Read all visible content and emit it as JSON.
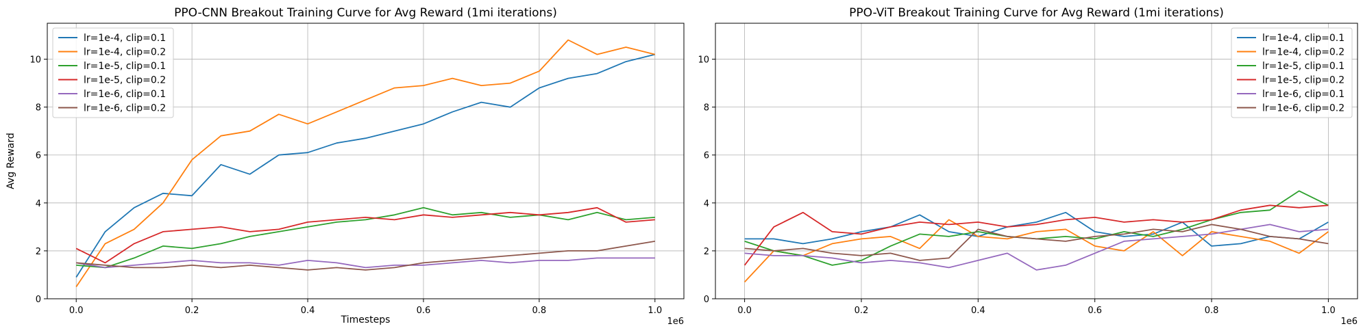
{
  "chart_data": [
    {
      "type": "line",
      "title": "PPO-CNN Breakout Training Curve for Avg Reward (1mi iterations)",
      "xlabel": "Timesteps",
      "ylabel": "Avg Reward",
      "x_offset_label": "1e6",
      "xlim": [
        -0.05,
        1.05
      ],
      "ylim": [
        0,
        11.5
      ],
      "xticks": [
        0.0,
        0.2,
        0.4,
        0.6,
        0.8,
        1.0
      ],
      "xtick_labels": [
        "0.0",
        "0.2",
        "0.4",
        "0.6",
        "0.8",
        "1.0"
      ],
      "yticks": [
        0,
        2,
        4,
        6,
        8,
        10
      ],
      "ytick_labels": [
        "0",
        "2",
        "4",
        "6",
        "8",
        "10"
      ],
      "grid": true,
      "legend_position": "top-left",
      "x": [
        0.0,
        0.05,
        0.1,
        0.15,
        0.2,
        0.25,
        0.3,
        0.35,
        0.4,
        0.45,
        0.5,
        0.55,
        0.6,
        0.65,
        0.7,
        0.75,
        0.8,
        0.85,
        0.9,
        0.95,
        1.0
      ],
      "series": [
        {
          "name": "lr=1e-4, clip=0.1",
          "color": "#1f77b4",
          "values": [
            0.9,
            2.8,
            3.8,
            4.4,
            4.3,
            5.6,
            5.2,
            6.0,
            6.1,
            6.5,
            6.7,
            7.0,
            7.3,
            7.8,
            8.2,
            8.0,
            8.8,
            9.2,
            9.4,
            9.9,
            10.2
          ]
        },
        {
          "name": "lr=1e-4, clip=0.2",
          "color": "#ff7f0e",
          "values": [
            0.5,
            2.3,
            2.9,
            4.0,
            5.8,
            6.8,
            7.0,
            7.7,
            7.3,
            7.8,
            8.3,
            8.8,
            8.9,
            9.2,
            8.9,
            9.0,
            9.5,
            10.8,
            10.2,
            10.5,
            10.2
          ]
        },
        {
          "name": "lr=1e-5, clip=0.1",
          "color": "#2ca02c",
          "values": [
            1.4,
            1.3,
            1.7,
            2.2,
            2.1,
            2.3,
            2.6,
            2.8,
            3.0,
            3.2,
            3.3,
            3.5,
            3.8,
            3.5,
            3.6,
            3.4,
            3.5,
            3.3,
            3.6,
            3.3,
            3.4
          ]
        },
        {
          "name": "lr=1e-5, clip=0.2",
          "color": "#d62728",
          "values": [
            2.1,
            1.5,
            2.3,
            2.8,
            2.9,
            3.0,
            2.8,
            2.9,
            3.2,
            3.3,
            3.4,
            3.3,
            3.5,
            3.4,
            3.5,
            3.6,
            3.5,
            3.6,
            3.8,
            3.2,
            3.3
          ]
        },
        {
          "name": "lr=1e-6, clip=0.1",
          "color": "#9467bd",
          "values": [
            1.5,
            1.3,
            1.4,
            1.5,
            1.6,
            1.5,
            1.5,
            1.4,
            1.6,
            1.5,
            1.3,
            1.4,
            1.4,
            1.5,
            1.6,
            1.5,
            1.6,
            1.6,
            1.7,
            1.7,
            1.7
          ]
        },
        {
          "name": "lr=1e-6, clip=0.2",
          "color": "#8c564b",
          "values": [
            1.5,
            1.4,
            1.3,
            1.3,
            1.4,
            1.3,
            1.4,
            1.3,
            1.2,
            1.3,
            1.2,
            1.3,
            1.5,
            1.6,
            1.7,
            1.8,
            1.9,
            2.0,
            2.0,
            2.2,
            2.4
          ]
        }
      ]
    },
    {
      "type": "line",
      "title": "PPO-ViT Breakout Training Curve for Avg Reward (1mi iterations)",
      "xlabel": "",
      "ylabel": "",
      "x_offset_label": "1e6",
      "xlim": [
        -0.05,
        1.05
      ],
      "ylim": [
        0,
        11.5
      ],
      "xticks": [
        0.0,
        0.2,
        0.4,
        0.6,
        0.8,
        1.0
      ],
      "xtick_labels": [
        "0.0",
        "0.2",
        "0.4",
        "0.6",
        "0.8",
        "1.0"
      ],
      "yticks": [
        0,
        2,
        4,
        6,
        8,
        10
      ],
      "ytick_labels": [
        "0",
        "2",
        "4",
        "6",
        "8",
        "10"
      ],
      "grid": true,
      "legend_position": "top-right",
      "x": [
        0.0,
        0.05,
        0.1,
        0.15,
        0.2,
        0.25,
        0.3,
        0.35,
        0.4,
        0.45,
        0.5,
        0.55,
        0.6,
        0.65,
        0.7,
        0.75,
        0.8,
        0.85,
        0.9,
        0.95,
        1.0
      ],
      "series": [
        {
          "name": "lr=1e-4, clip=0.1",
          "color": "#1f77b4",
          "values": [
            2.5,
            2.5,
            2.3,
            2.5,
            2.8,
            3.0,
            3.5,
            2.8,
            2.6,
            3.0,
            3.2,
            3.6,
            2.8,
            2.6,
            2.7,
            3.2,
            2.2,
            2.3,
            2.6,
            2.5,
            3.2
          ]
        },
        {
          "name": "lr=1e-4, clip=0.2",
          "color": "#ff7f0e",
          "values": [
            0.7,
            2.0,
            1.8,
            2.3,
            2.5,
            2.6,
            2.1,
            3.3,
            2.6,
            2.5,
            2.8,
            2.9,
            2.2,
            2.0,
            2.8,
            1.8,
            2.8,
            2.6,
            2.4,
            1.9,
            2.8
          ]
        },
        {
          "name": "lr=1e-5, clip=0.1",
          "color": "#2ca02c",
          "values": [
            2.4,
            2.0,
            1.8,
            1.4,
            1.6,
            2.2,
            2.7,
            2.6,
            2.8,
            2.6,
            2.5,
            2.6,
            2.5,
            2.8,
            2.6,
            2.9,
            3.3,
            3.6,
            3.7,
            4.5,
            3.9
          ]
        },
        {
          "name": "lr=1e-5, clip=0.2",
          "color": "#d62728",
          "values": [
            1.4,
            3.0,
            3.6,
            2.8,
            2.7,
            3.0,
            3.2,
            3.1,
            3.2,
            3.0,
            3.1,
            3.3,
            3.4,
            3.2,
            3.3,
            3.2,
            3.3,
            3.7,
            3.9,
            3.8,
            3.9
          ]
        },
        {
          "name": "lr=1e-6, clip=0.1",
          "color": "#9467bd",
          "values": [
            1.9,
            1.8,
            1.8,
            1.7,
            1.5,
            1.6,
            1.5,
            1.3,
            1.6,
            1.9,
            1.2,
            1.4,
            1.9,
            2.4,
            2.5,
            2.6,
            2.7,
            2.9,
            3.1,
            2.8,
            2.9
          ]
        },
        {
          "name": "lr=1e-6, clip=0.2",
          "color": "#8c564b",
          "values": [
            2.1,
            2.0,
            2.1,
            1.9,
            1.8,
            1.9,
            1.6,
            1.7,
            2.9,
            2.6,
            2.5,
            2.4,
            2.6,
            2.7,
            2.9,
            2.8,
            3.1,
            2.9,
            2.6,
            2.5,
            2.3
          ]
        }
      ]
    }
  ]
}
